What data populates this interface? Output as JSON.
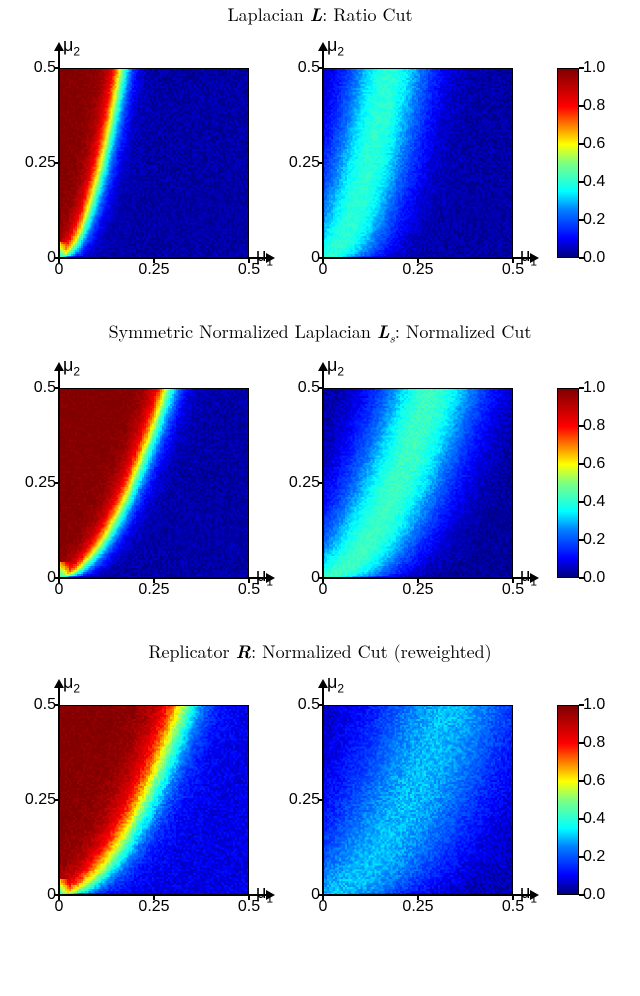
{
  "colormap": {
    "stops": [
      {
        "v": 0.0,
        "c": "#00007f"
      },
      {
        "v": 0.1,
        "c": "#0000ff"
      },
      {
        "v": 0.25,
        "c": "#007fff"
      },
      {
        "v": 0.35,
        "c": "#00ffff"
      },
      {
        "v": 0.5,
        "c": "#7fff7f"
      },
      {
        "v": 0.6,
        "c": "#ffff00"
      },
      {
        "v": 0.7,
        "c": "#ff7f00"
      },
      {
        "v": 0.8,
        "c": "#ff0000"
      },
      {
        "v": 1.0,
        "c": "#800000"
      }
    ]
  },
  "axes": {
    "xlabel": "μ₁",
    "ylabel": "μ₂",
    "xlim": [
      0,
      0.5
    ],
    "ylim": [
      0,
      0.5
    ],
    "xticks": [
      {
        "v": 0,
        "l": "0"
      },
      {
        "v": 0.25,
        "l": "0.25"
      },
      {
        "v": 0.5,
        "l": "0.5"
      }
    ],
    "yticks": [
      {
        "v": 0,
        "l": "0"
      },
      {
        "v": 0.25,
        "l": "0.25"
      },
      {
        "v": 0.5,
        "l": "0.5"
      }
    ],
    "tick_fontsize": 16,
    "label_fontsize": 18,
    "grid_resolution": 96
  },
  "colorbar": {
    "ticks": [
      {
        "v": 0.0,
        "l": "0.0"
      },
      {
        "v": 0.2,
        "l": "0.2"
      },
      {
        "v": 0.4,
        "l": "0.4"
      },
      {
        "v": 0.6,
        "l": "0.6"
      },
      {
        "v": 0.8,
        "l": "0.8"
      },
      {
        "v": 1.0,
        "l": "1.0"
      }
    ]
  },
  "sections": [
    {
      "id": "laplacian",
      "title_html": "Laplacian <span class='bold'>L</span>: Ratio Cut",
      "panels": [
        {
          "field": {
            "type": "phase",
            "threshold": 0.15,
            "slope": 0.1,
            "hi": 1.0,
            "lo": 0.03,
            "band": 0.05,
            "noise": 0.03,
            "seed": 11
          }
        },
        {
          "field": {
            "type": "ridge",
            "threshold": 0.16,
            "slope": 0.1,
            "peak": 0.4,
            "lo": 0.03,
            "band": 0.08,
            "noise": 0.03,
            "seed": 12
          }
        }
      ]
    },
    {
      "id": "symlap",
      "title_html": "Symmetric Normalized Laplacian <span class='bold'>L</span><span class='sub'>s</span>: Normalized Cut",
      "panels": [
        {
          "field": {
            "type": "phase",
            "threshold": 0.25,
            "slope": 0.25,
            "hi": 1.0,
            "lo": 0.03,
            "band": 0.06,
            "noise": 0.03,
            "seed": 21
          }
        },
        {
          "field": {
            "type": "ridge",
            "threshold": 0.25,
            "slope": 0.25,
            "peak": 0.42,
            "lo": 0.02,
            "band": 0.1,
            "noise": 0.03,
            "seed": 22
          }
        }
      ]
    },
    {
      "id": "replicator",
      "title_html": "Replicator <span class='bold'>R</span>: Normalized Cut (reweighted)",
      "panels": [
        {
          "field": {
            "type": "phase",
            "threshold": 0.3,
            "slope": 0.18,
            "hi": 1.0,
            "lo": 0.08,
            "band": 0.1,
            "noise": 0.04,
            "seed": 31
          }
        },
        {
          "field": {
            "type": "ridge",
            "threshold": 0.3,
            "slope": 0.22,
            "peak": 0.3,
            "lo": 0.04,
            "band": 0.14,
            "noise": 0.04,
            "seed": 32
          }
        }
      ]
    }
  ]
}
